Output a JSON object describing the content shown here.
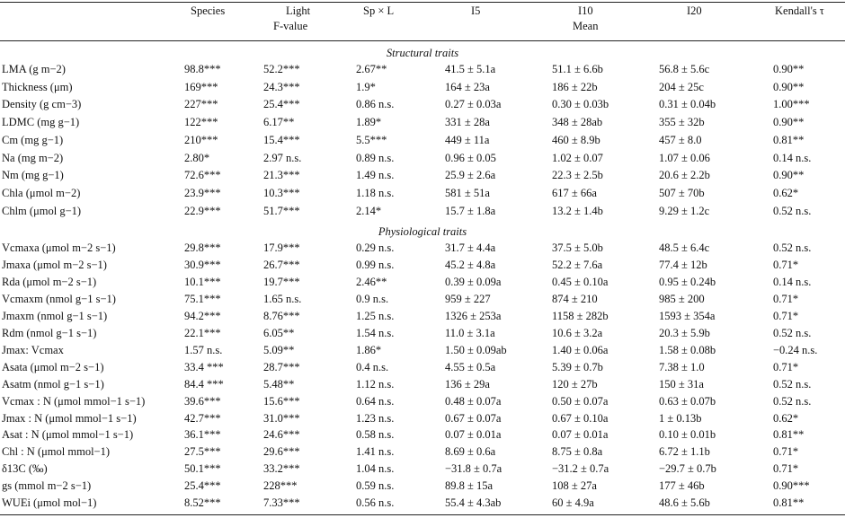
{
  "header": {
    "species": "Species",
    "light": "Light",
    "light_sub": "F-value",
    "spxl": "Sp × L",
    "i5": "I5",
    "i10": "I10",
    "mean": "Mean",
    "i20": "I20",
    "kendall": "Kendall's τ"
  },
  "sections": {
    "structural": "Structural traits",
    "physiological": "Physiological traits"
  },
  "structural_rows": [
    [
      "LMA (g m−2)",
      "98.8***",
      "52.2***",
      "2.67**",
      "41.5 ± 5.1a",
      "51.1 ± 6.6b",
      "56.8 ± 5.6c",
      "0.90**"
    ],
    [
      "Thickness (μm)",
      "169***",
      "24.3***",
      "1.9*",
      "164 ± 23a",
      "186 ± 22b",
      "204 ± 25c",
      "0.90**"
    ],
    [
      "Density (g cm−3)",
      "227***",
      "25.4***",
      "0.86 n.s.",
      "0.27 ± 0.03a",
      "0.30 ± 0.03b",
      "0.31 ± 0.04b",
      "1.00***"
    ],
    [
      "LDMC (mg g−1)",
      "122***",
      "6.17**",
      "1.89*",
      "331 ± 28a",
      "348 ± 28ab",
      "355 ± 32b",
      "0.90**"
    ],
    [
      "Cm (mg g−1)",
      "210***",
      "15.4***",
      "5.5***",
      "449 ± 11a",
      "460 ± 8.9b",
      "457 ± 8.0",
      "0.81**"
    ],
    [
      "Na (mg m−2)",
      "2.80*",
      "2.97 n.s.",
      "0.89 n.s.",
      "0.96 ± 0.05",
      "1.02 ± 0.07",
      "1.07 ± 0.06",
      "0.14 n.s."
    ],
    [
      "Nm (mg g−1)",
      "72.6***",
      "21.3***",
      "1.49 n.s.",
      "25.9 ± 2.6a",
      "22.3 ± 2.5b",
      "20.6 ± 2.2b",
      "0.90**"
    ],
    [
      "Chla (μmol m−2)",
      "23.9***",
      "10.3***",
      "1.18 n.s.",
      "581 ± 51a",
      "617 ± 66a",
      "507 ± 70b",
      "0.62*"
    ],
    [
      "Chlm (μmol g−1)",
      "22.9***",
      "51.7***",
      "2.14*",
      "15.7 ± 1.8a",
      "13.2 ± 1.4b",
      "9.29 ± 1.2c",
      "0.52 n.s."
    ]
  ],
  "physiological_rows": [
    [
      "Vcmaxa (μmol m−2 s−1)",
      "29.8***",
      "17.9***",
      "0.29 n.s.",
      "31.7 ± 4.4a",
      "37.5 ± 5.0b",
      "48.5 ± 6.4c",
      "0.52 n.s."
    ],
    [
      "Jmaxa (μmol m−2 s−1)",
      "30.9***",
      "26.7***",
      "0.99 n.s.",
      "45.2 ± 4.8a",
      "52.2 ± 7.6a",
      "77.4 ± 12b",
      "0.71*"
    ],
    [
      "Rda (μmol m−2 s−1)",
      "10.1***",
      "19.7***",
      "2.46**",
      "0.39 ± 0.09a",
      "0.45 ± 0.10a",
      "0.95 ± 0.24b",
      "0.14 n.s."
    ],
    [
      "Vcmaxm (nmol g−1 s−1)",
      "75.1***",
      "1.65 n.s.",
      "0.9 n.s.",
      "959 ± 227",
      "874 ± 210",
      "985 ± 200",
      "0.71*"
    ],
    [
      "Jmaxm (nmol g−1 s−1)",
      "94.2***",
      "8.76***",
      "1.25 n.s.",
      "1326 ± 253a",
      "1158 ± 282b",
      "1593 ± 354a",
      "0.71*"
    ],
    [
      "Rdm (nmol g−1 s−1)",
      "22.1***",
      "6.05**",
      "1.54 n.s.",
      "11.0 ± 3.1a",
      "10.6 ± 3.2a",
      "20.3 ± 5.9b",
      "0.52 n.s."
    ],
    [
      "Jmax: Vcmax",
      "1.57 n.s.",
      "5.09**",
      "1.86*",
      "1.50 ± 0.09ab",
      "1.40 ± 0.06a",
      "1.58 ± 0.08b",
      "−0.24 n.s."
    ],
    [
      "Asata (μmol m−2 s−1)",
      "33.4 ***",
      "28.7***",
      "0.4 n.s.",
      "4.55 ± 0.5a",
      "5.39 ± 0.7b",
      "7.38 ± 1.0",
      "0.71*"
    ],
    [
      "Asatm (nmol g−1 s−1)",
      "84.4 ***",
      "5.48**",
      "1.12 n.s.",
      "136 ± 29a",
      "120 ± 27b",
      "150 ± 31a",
      "0.52 n.s."
    ],
    [
      "Vcmax : N (μmol mmol−1 s−1)",
      "39.6***",
      "15.6***",
      "0.64 n.s.",
      "0.48 ± 0.07a",
      "0.50 ± 0.07a",
      "0.63 ± 0.07b",
      "0.52 n.s."
    ],
    [
      "Jmax : N (μmol mmol−1 s−1)",
      "42.7***",
      "31.0***",
      "1.23 n.s.",
      "0.67 ± 0.07a",
      "0.67 ± 0.10a",
      "1 ± 0.13b",
      "0.62*"
    ],
    [
      "Asat : N (μmol mmol−1 s−1)",
      "36.1***",
      "24.6***",
      "0.58 n.s.",
      "0.07 ± 0.01a",
      "0.07 ± 0.01a",
      "0.10 ± 0.01b",
      "0.81**"
    ],
    [
      "Chl : N (μmol mmol−1)",
      "27.5***",
      "29.6***",
      "1.41 n.s.",
      "8.69 ± 0.6a",
      "8.75 ± 0.8a",
      "6.72 ± 1.1b",
      "0.71*"
    ],
    [
      "δ13C (‰)",
      "50.1***",
      "33.2***",
      "1.04 n.s.",
      "−31.8 ± 0.7a",
      "−31.2 ± 0.7a",
      "−29.7 ± 0.7b",
      "0.71*"
    ],
    [
      "gs (mmol m−2 s−1)",
      "25.4***",
      "228***",
      "0.59 n.s.",
      "89.8 ± 15a",
      "108 ± 27a",
      "177 ± 46b",
      "0.90***"
    ],
    [
      "WUEi (μmol mol−1)",
      "8.52***",
      "7.33***",
      "0.56 n.s.",
      "55.4 ± 4.3ab",
      "60 ± 4.9a",
      "48.6 ± 5.6b",
      "0.81**"
    ]
  ]
}
